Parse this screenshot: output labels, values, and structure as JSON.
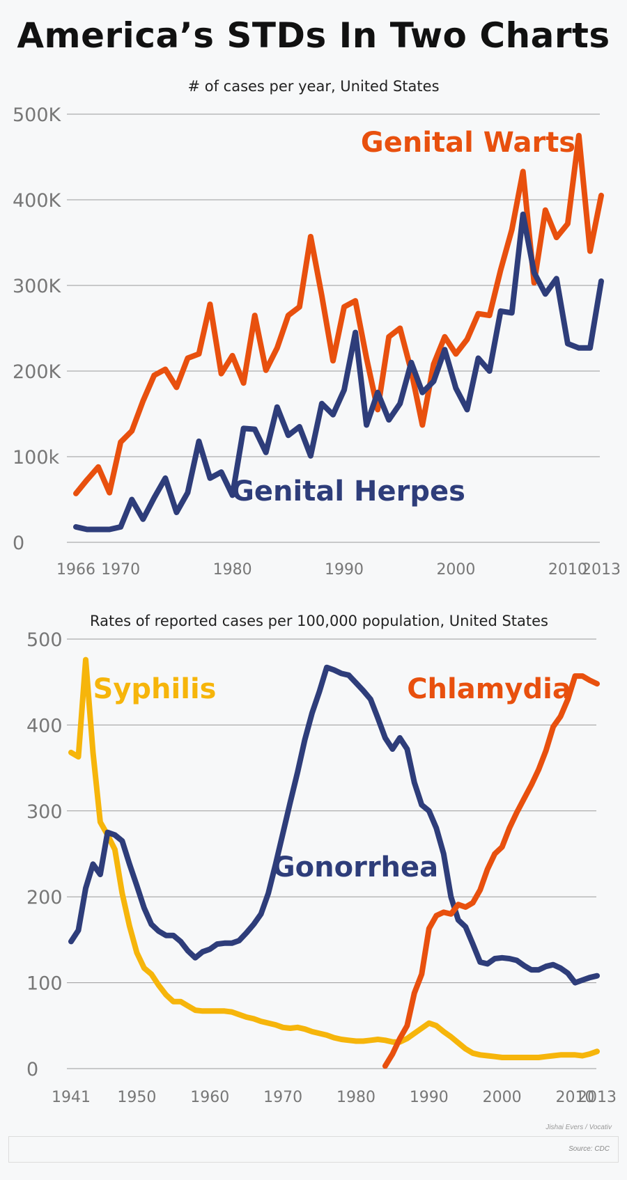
{
  "title": "America’s STDs In Two Charts",
  "credit": "Jishai Evers / Vocativ",
  "source": "Source: CDC",
  "colors": {
    "orange": "#e8500e",
    "navy": "#2e3d7a",
    "yellow": "#f6b50b"
  },
  "chart_data": [
    {
      "type": "line",
      "title": "# of cases per year, United States",
      "ylim": [
        0,
        500000
      ],
      "xlim": [
        1966,
        2013
      ],
      "yticks": [
        {
          "value": 0,
          "label": "0"
        },
        {
          "value": 100000,
          "label": "100k"
        },
        {
          "value": 200000,
          "label": "200K"
        },
        {
          "value": 300000,
          "label": "300K"
        },
        {
          "value": 400000,
          "label": "400K"
        },
        {
          "value": 500000,
          "label": "500K"
        }
      ],
      "xticks": [
        {
          "value": 1966,
          "label": "1966"
        },
        {
          "value": 1970,
          "label": "1970"
        },
        {
          "value": 1980,
          "label": "1980"
        },
        {
          "value": 1990,
          "label": "1990"
        },
        {
          "value": 2000,
          "label": "2000"
        },
        {
          "value": 2010,
          "label": "2010"
        },
        {
          "value": 2013,
          "label": "2013"
        }
      ],
      "series": [
        {
          "name": "Genital Warts",
          "color": "#e8500e",
          "x": [
            1966,
            1967,
            1968,
            1969,
            1970,
            1971,
            1972,
            1973,
            1974,
            1975,
            1976,
            1977,
            1978,
            1979,
            1980,
            1981,
            1982,
            1983,
            1984,
            1985,
            1986,
            1987,
            1988,
            1989,
            1990,
            1991,
            1992,
            1993,
            1994,
            1995,
            1996,
            1997,
            1998,
            1999,
            2000,
            2001,
            2002,
            2003,
            2004,
            2005,
            2006,
            2007,
            2008,
            2009,
            2010,
            2011,
            2012,
            2013
          ],
          "values": [
            57000,
            73000,
            88000,
            58000,
            117000,
            130000,
            165000,
            195000,
            202000,
            181000,
            215000,
            220000,
            278000,
            197000,
            218000,
            186000,
            265000,
            201000,
            227000,
            265000,
            275000,
            357000,
            288000,
            212000,
            275000,
            282000,
            215000,
            155000,
            240000,
            250000,
            200000,
            137000,
            208000,
            240000,
            220000,
            237000,
            267000,
            265000,
            318000,
            365000,
            433000,
            303000,
            388000,
            356000,
            372000,
            475000,
            340000,
            405000
          ]
        },
        {
          "name": "Genital Herpes",
          "color": "#2e3d7a",
          "x": [
            1966,
            1967,
            1968,
            1969,
            1970,
            1971,
            1972,
            1973,
            1974,
            1975,
            1976,
            1977,
            1978,
            1979,
            1980,
            1981,
            1982,
            1983,
            1984,
            1985,
            1986,
            1987,
            1988,
            1989,
            1990,
            1991,
            1992,
            1993,
            1994,
            1995,
            1996,
            1997,
            1998,
            1999,
            2000,
            2001,
            2002,
            2003,
            2004,
            2005,
            2006,
            2007,
            2008,
            2009,
            2010,
            2011,
            2012,
            2013
          ],
          "values": [
            18000,
            15000,
            15000,
            15000,
            18000,
            50000,
            27000,
            52000,
            75000,
            35000,
            58000,
            118000,
            75000,
            82000,
            55000,
            133000,
            132000,
            105000,
            158000,
            125000,
            135000,
            101000,
            162000,
            149000,
            178000,
            245000,
            137000,
            175000,
            143000,
            162000,
            210000,
            175000,
            188000,
            225000,
            180000,
            155000,
            215000,
            200000,
            270000,
            268000,
            383000,
            315000,
            290000,
            308000,
            232000,
            227000,
            227000,
            305000
          ]
        }
      ]
    },
    {
      "type": "line",
      "title": "Rates of reported cases per 100,000 population, United States",
      "ylim": [
        0,
        500
      ],
      "xlim": [
        1941,
        2013
      ],
      "yticks": [
        {
          "value": 0,
          "label": "0"
        },
        {
          "value": 100,
          "label": "100"
        },
        {
          "value": 200,
          "label": "200"
        },
        {
          "value": 300,
          "label": "300"
        },
        {
          "value": 400,
          "label": "400"
        },
        {
          "value": 500,
          "label": "500"
        }
      ],
      "xticks": [
        {
          "value": 1941,
          "label": "1941"
        },
        {
          "value": 1950,
          "label": "1950"
        },
        {
          "value": 1960,
          "label": "1960"
        },
        {
          "value": 1970,
          "label": "1970"
        },
        {
          "value": 1980,
          "label": "1980"
        },
        {
          "value": 1990,
          "label": "1990"
        },
        {
          "value": 2000,
          "label": "2000"
        },
        {
          "value": 2010,
          "label": "2010"
        },
        {
          "value": 2013,
          "label": "2013"
        }
      ],
      "series": [
        {
          "name": "Syphilis",
          "color": "#f6b50b",
          "x": [
            1941,
            1942,
            1943,
            1944,
            1945,
            1946,
            1947,
            1948,
            1949,
            1950,
            1951,
            1952,
            1953,
            1954,
            1955,
            1956,
            1957,
            1958,
            1959,
            1960,
            1961,
            1962,
            1963,
            1964,
            1965,
            1966,
            1967,
            1968,
            1969,
            1970,
            1971,
            1972,
            1973,
            1974,
            1975,
            1976,
            1977,
            1978,
            1979,
            1980,
            1981,
            1982,
            1983,
            1984,
            1985,
            1986,
            1987,
            1988,
            1989,
            1990,
            1991,
            1992,
            1993,
            1994,
            1995,
            1996,
            1997,
            1998,
            1999,
            2000,
            2001,
            2002,
            2003,
            2004,
            2005,
            2006,
            2007,
            2008,
            2009,
            2010,
            2011,
            2012,
            2013
          ],
          "values": [
            368,
            363,
            476,
            368,
            287,
            272,
            255,
            204,
            166,
            135,
            117,
            110,
            97,
            86,
            78,
            78,
            73,
            68,
            67,
            67,
            67,
            67,
            66,
            63,
            60,
            58,
            55,
            53,
            51,
            48,
            47,
            48,
            46,
            43,
            41,
            39,
            36,
            34,
            33,
            32,
            32,
            33,
            34,
            33,
            31,
            31,
            35,
            41,
            47,
            53,
            50,
            43,
            37,
            30,
            23,
            18,
            16,
            15,
            14,
            13,
            13,
            13,
            13,
            13,
            13,
            14,
            15,
            16,
            16,
            16,
            15,
            17,
            20
          ]
        },
        {
          "name": "Gonorrhea",
          "color": "#2e3d7a",
          "x": [
            1941,
            1942,
            1943,
            1944,
            1945,
            1946,
            1947,
            1948,
            1949,
            1950,
            1951,
            1952,
            1953,
            1954,
            1955,
            1956,
            1957,
            1958,
            1959,
            1960,
            1961,
            1962,
            1963,
            1964,
            1965,
            1966,
            1967,
            1968,
            1969,
            1970,
            1971,
            1972,
            1973,
            1974,
            1975,
            1976,
            1977,
            1978,
            1979,
            1980,
            1981,
            1982,
            1983,
            1984,
            1985,
            1986,
            1987,
            1988,
            1989,
            1990,
            1991,
            1992,
            1993,
            1994,
            1995,
            1996,
            1997,
            1998,
            1999,
            2000,
            2001,
            2002,
            2003,
            2004,
            2005,
            2006,
            2007,
            2008,
            2009,
            2010,
            2011,
            2012,
            2013
          ],
          "values": [
            148,
            161,
            210,
            238,
            226,
            275,
            272,
            265,
            238,
            213,
            187,
            168,
            160,
            155,
            155,
            148,
            137,
            129,
            136,
            139,
            145,
            146,
            146,
            149,
            158,
            168,
            180,
            204,
            238,
            274,
            310,
            345,
            383,
            414,
            439,
            467,
            464,
            460,
            458,
            449,
            440,
            430,
            408,
            385,
            372,
            385,
            372,
            333,
            307,
            300,
            280,
            250,
            200,
            173,
            165,
            145,
            124,
            122,
            128,
            129,
            128,
            126,
            120,
            115,
            115,
            119,
            121,
            117,
            111,
            100,
            103,
            106,
            108
          ]
        },
        {
          "name": "Chlamydia",
          "color": "#e8500e",
          "x": [
            1984,
            1985,
            1986,
            1987,
            1988,
            1989,
            1990,
            1991,
            1992,
            1993,
            1994,
            1995,
            1996,
            1997,
            1998,
            1999,
            2000,
            2001,
            2002,
            2003,
            2004,
            2005,
            2006,
            2007,
            2008,
            2009,
            2010,
            2011,
            2012,
            2013
          ],
          "values": [
            3,
            17,
            35,
            50,
            88,
            110,
            163,
            178,
            182,
            180,
            191,
            188,
            193,
            208,
            232,
            250,
            258,
            280,
            298,
            314,
            330,
            348,
            370,
            398,
            410,
            430,
            457,
            457,
            452,
            448
          ]
        }
      ]
    }
  ]
}
